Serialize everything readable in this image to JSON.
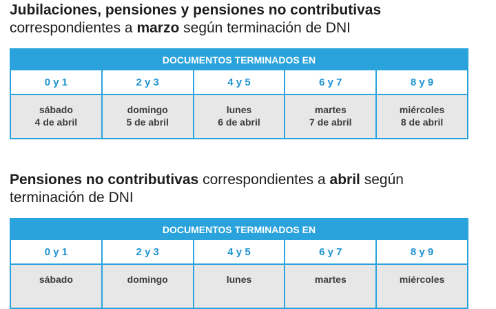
{
  "sections": [
    {
      "heading": {
        "lines": [
          [
            {
              "text": "Jubilaciones, pensiones y pensiones no contributivas",
              "bold": true
            }
          ],
          [
            {
              "text": "correspondientes a "
            },
            {
              "text": "marzo",
              "bold": true
            },
            {
              "text": " según terminación de DNI"
            }
          ]
        ]
      },
      "table": {
        "header": "DOCUMENTOS TERMINADOS EN",
        "columns": [
          {
            "digits": "0 y 1",
            "day": "sábado",
            "date": "4 de abril"
          },
          {
            "digits": "2 y 3",
            "day": "domingo",
            "date": "5 de abril"
          },
          {
            "digits": "4 y 5",
            "day": "lunes",
            "date": "6 de abril"
          },
          {
            "digits": "6 y 7",
            "day": "martes",
            "date": "7 de abril"
          },
          {
            "digits": "8 y 9",
            "day": "miércoles",
            "date": "8 de abril"
          }
        ]
      }
    },
    {
      "heading": {
        "lines": [
          [
            {
              "text": "Pensiones no contributivas",
              "bold": true
            },
            {
              "text": " correspondientes a "
            },
            {
              "text": "abril",
              "bold": true
            },
            {
              "text": " según"
            }
          ],
          [
            {
              "text": "terminación de DNI"
            }
          ]
        ]
      },
      "table": {
        "header": "DOCUMENTOS TERMINADOS EN",
        "columns": [
          {
            "digits": "0 y 1",
            "day": "sábado"
          },
          {
            "digits": "2 y 3",
            "day": "domingo"
          },
          {
            "digits": "4 y 5",
            "day": "lunes"
          },
          {
            "digits": "6 y 7",
            "day": "martes"
          },
          {
            "digits": "8 y 9",
            "day": "miércoles"
          }
        ]
      }
    }
  ]
}
